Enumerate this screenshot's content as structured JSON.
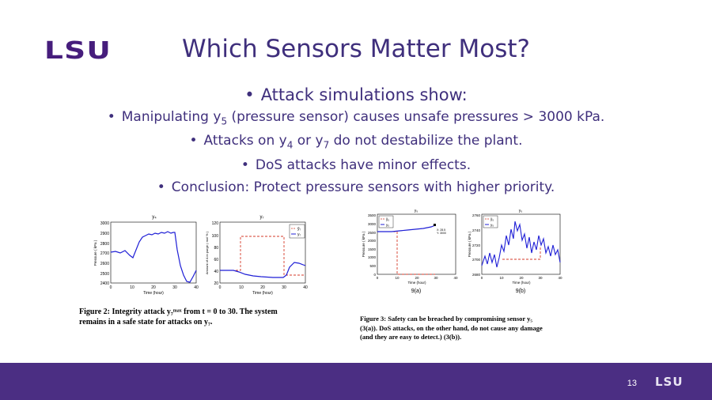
{
  "logo": "LSU",
  "title": "Which Sensors Matter Most?",
  "bullets": {
    "main": "Attack simulations show:",
    "b1_pre": "Manipulating y",
    "b1_sub": "5",
    "b1_post": " (pressure sensor) causes unsafe pressures > 3000 kPa.",
    "b2_pre": "Attacks on y",
    "b2_sub1": "4",
    "b2_mid": " or y",
    "b2_sub2": "7",
    "b2_post": " do not destabilize the plant.",
    "b3": "DoS attacks have minor effects.",
    "b4": "Conclusion: Protect pressure sensors with higher priority."
  },
  "figure2": {
    "left_plot": {
      "title": "y₄",
      "ylabel": "Pressure ( kPa )",
      "xlabel": "Time (hour)",
      "yticks": [
        "3000",
        "2900",
        "2800",
        "2700",
        "2600",
        "2500",
        "2400"
      ],
      "xticks": [
        "0",
        "10",
        "20",
        "30",
        "40"
      ]
    },
    "right_plot": {
      "title": "y₇",
      "ylabel": "Amount of A in purge ( mol % )",
      "xlabel": "Time (hour)",
      "yticks": [
        "120",
        "100",
        "80",
        "60",
        "40",
        "20"
      ],
      "xticks": [
        "0",
        "10",
        "20",
        "30",
        "40"
      ],
      "legend": [
        "ỹ₇",
        "y₇"
      ]
    },
    "caption_line1": "Figure 2:  Integrity attack y₇ᵐᵃˣ from t = 0 to 30.  The system",
    "caption_line2": "remains in a safe state for attacks on y₇."
  },
  "figure3": {
    "left_plot": {
      "title": "y₅",
      "ylabel": "Pressure ( kPa )",
      "xlabel": "Time (hour)",
      "yticks": [
        "3500",
        "3000",
        "2500",
        "2000",
        "1500",
        "1000",
        "500",
        "0"
      ],
      "xticks": [
        "0",
        "10",
        "20",
        "30",
        "40"
      ],
      "legend": [
        "ỹ₅",
        "y₅"
      ],
      "marker_labels": [
        "X: 28.5",
        "Y: 3000"
      ],
      "label": "9(a)"
    },
    "right_plot": {
      "title": "y₅",
      "ylabel": "Pressure ( kPa )",
      "xlabel": "Time (hour)",
      "yticks": [
        "2760",
        "2740",
        "2720",
        "2700",
        "2680"
      ],
      "xticks": [
        "0",
        "10",
        "20",
        "30",
        "40"
      ],
      "legend": [
        "ỹ₅",
        "y₅"
      ],
      "label": "9(b)"
    },
    "caption_line1": "Figure 3:  Safety can be breached by compromising sensor y₅",
    "caption_line2": "(3(a)). DoS attacks, on the other hand, do not cause any damage",
    "caption_line3": "(and they are easy to detect.) (3(b))."
  },
  "footer": {
    "page_number": "13",
    "logo": "LSU"
  },
  "colors": {
    "purple": "#4b2e83",
    "title_purple": "#3f2f7c",
    "series_blue": "#1f1fd6",
    "series_red": "#d43a2a"
  }
}
